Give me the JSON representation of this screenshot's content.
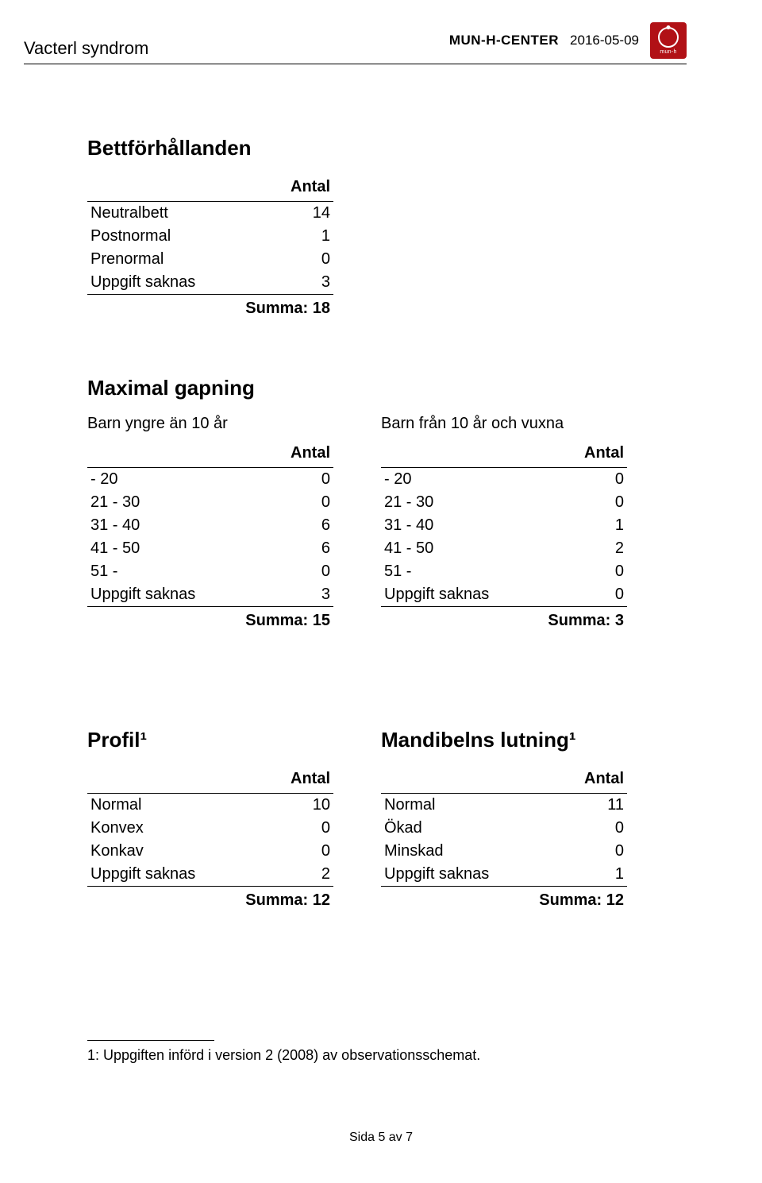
{
  "header": {
    "title_left": "Vacterl syndrom",
    "center_name": "MUN-H-CENTER",
    "date": "2016-05-09",
    "logo_text": "mun-h"
  },
  "section1": {
    "title": "Bettförhållanden",
    "col_header": "Antal",
    "rows": [
      {
        "label": "Neutralbett",
        "value": "14"
      },
      {
        "label": "Postnormal",
        "value": "1"
      },
      {
        "label": "Prenormal",
        "value": "0"
      },
      {
        "label": "Uppgift saknas",
        "value": "3"
      }
    ],
    "sum": "Summa: 18"
  },
  "section2": {
    "title": "Maximal gapning",
    "left": {
      "heading": "Barn yngre än 10 år",
      "col_header": "Antal",
      "rows": [
        {
          "label": "- 20",
          "value": "0"
        },
        {
          "label": "21 - 30",
          "value": "0"
        },
        {
          "label": "31 - 40",
          "value": "6"
        },
        {
          "label": "41 - 50",
          "value": "6"
        },
        {
          "label": "51 -",
          "value": "0"
        },
        {
          "label": "Uppgift saknas",
          "value": "3"
        }
      ],
      "sum": "Summa: 15"
    },
    "right": {
      "heading": "Barn från 10 år och vuxna",
      "col_header": "Antal",
      "rows": [
        {
          "label": "- 20",
          "value": "0"
        },
        {
          "label": "21 - 30",
          "value": "0"
        },
        {
          "label": "31 - 40",
          "value": "1"
        },
        {
          "label": "41 - 50",
          "value": "2"
        },
        {
          "label": "51 -",
          "value": "0"
        },
        {
          "label": "Uppgift saknas",
          "value": "0"
        }
      ],
      "sum": "Summa: 3"
    }
  },
  "section3": {
    "left": {
      "title": "Profil¹",
      "col_header": "Antal",
      "rows": [
        {
          "label": "Normal",
          "value": "10"
        },
        {
          "label": "Konvex",
          "value": "0"
        },
        {
          "label": "Konkav",
          "value": "0"
        },
        {
          "label": "Uppgift saknas",
          "value": "2"
        }
      ],
      "sum": "Summa: 12"
    },
    "right": {
      "title": "Mandibelns lutning¹",
      "col_header": "Antal",
      "rows": [
        {
          "label": "Normal",
          "value": "11"
        },
        {
          "label": "Ökad",
          "value": "0"
        },
        {
          "label": "Minskad",
          "value": "0"
        },
        {
          "label": "Uppgift saknas",
          "value": "1"
        }
      ],
      "sum": "Summa: 12"
    }
  },
  "footnote": "1: Uppgiften införd i version 2 (2008) av observationsschemat.",
  "footer": "Sida 5 av 7"
}
